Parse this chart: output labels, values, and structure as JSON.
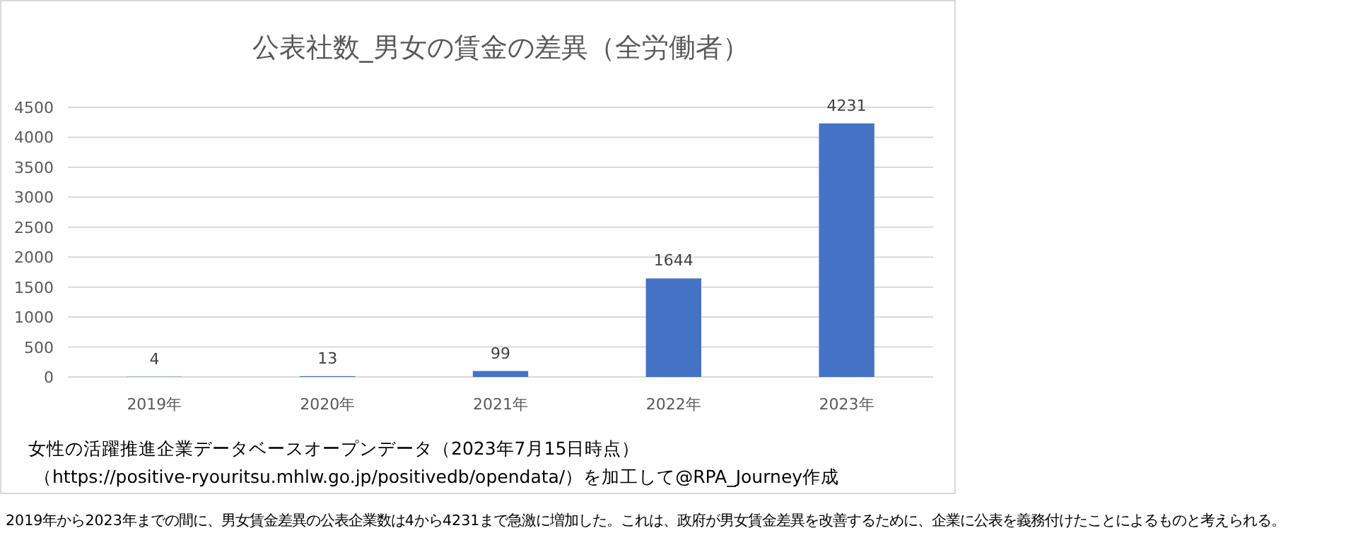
{
  "chart_data": {
    "type": "bar",
    "title": "公表社数_男女の賃金の差異（全労働者）",
    "categories": [
      "2019年",
      "2020年",
      "2021年",
      "2022年",
      "2023年"
    ],
    "values": [
      4,
      13,
      99,
      1644,
      4231
    ],
    "color": "#4472c4",
    "ylim": [
      0,
      4500
    ],
    "yticks": [
      0,
      500,
      1000,
      1500,
      2000,
      2500,
      3000,
      3500,
      4000,
      4500
    ],
    "grid": "y",
    "data_labels": true,
    "annotations": [
      "女性の活躍推進企業データベースオープンデータ（2023年7月15日時点）",
      "（https://positive-ryouritsu.mhlw.go.jp/positivedb/opendata/）を加工して@RPA_Journey作成",
      "2019年から2023年までの間に、男女賃金差異の公表企業数は4から4231まで急激に増加した。これは、政府が男女賃金差異を改善するために、企業に公表を義務付けたことによるものと考えられる。"
    ]
  }
}
